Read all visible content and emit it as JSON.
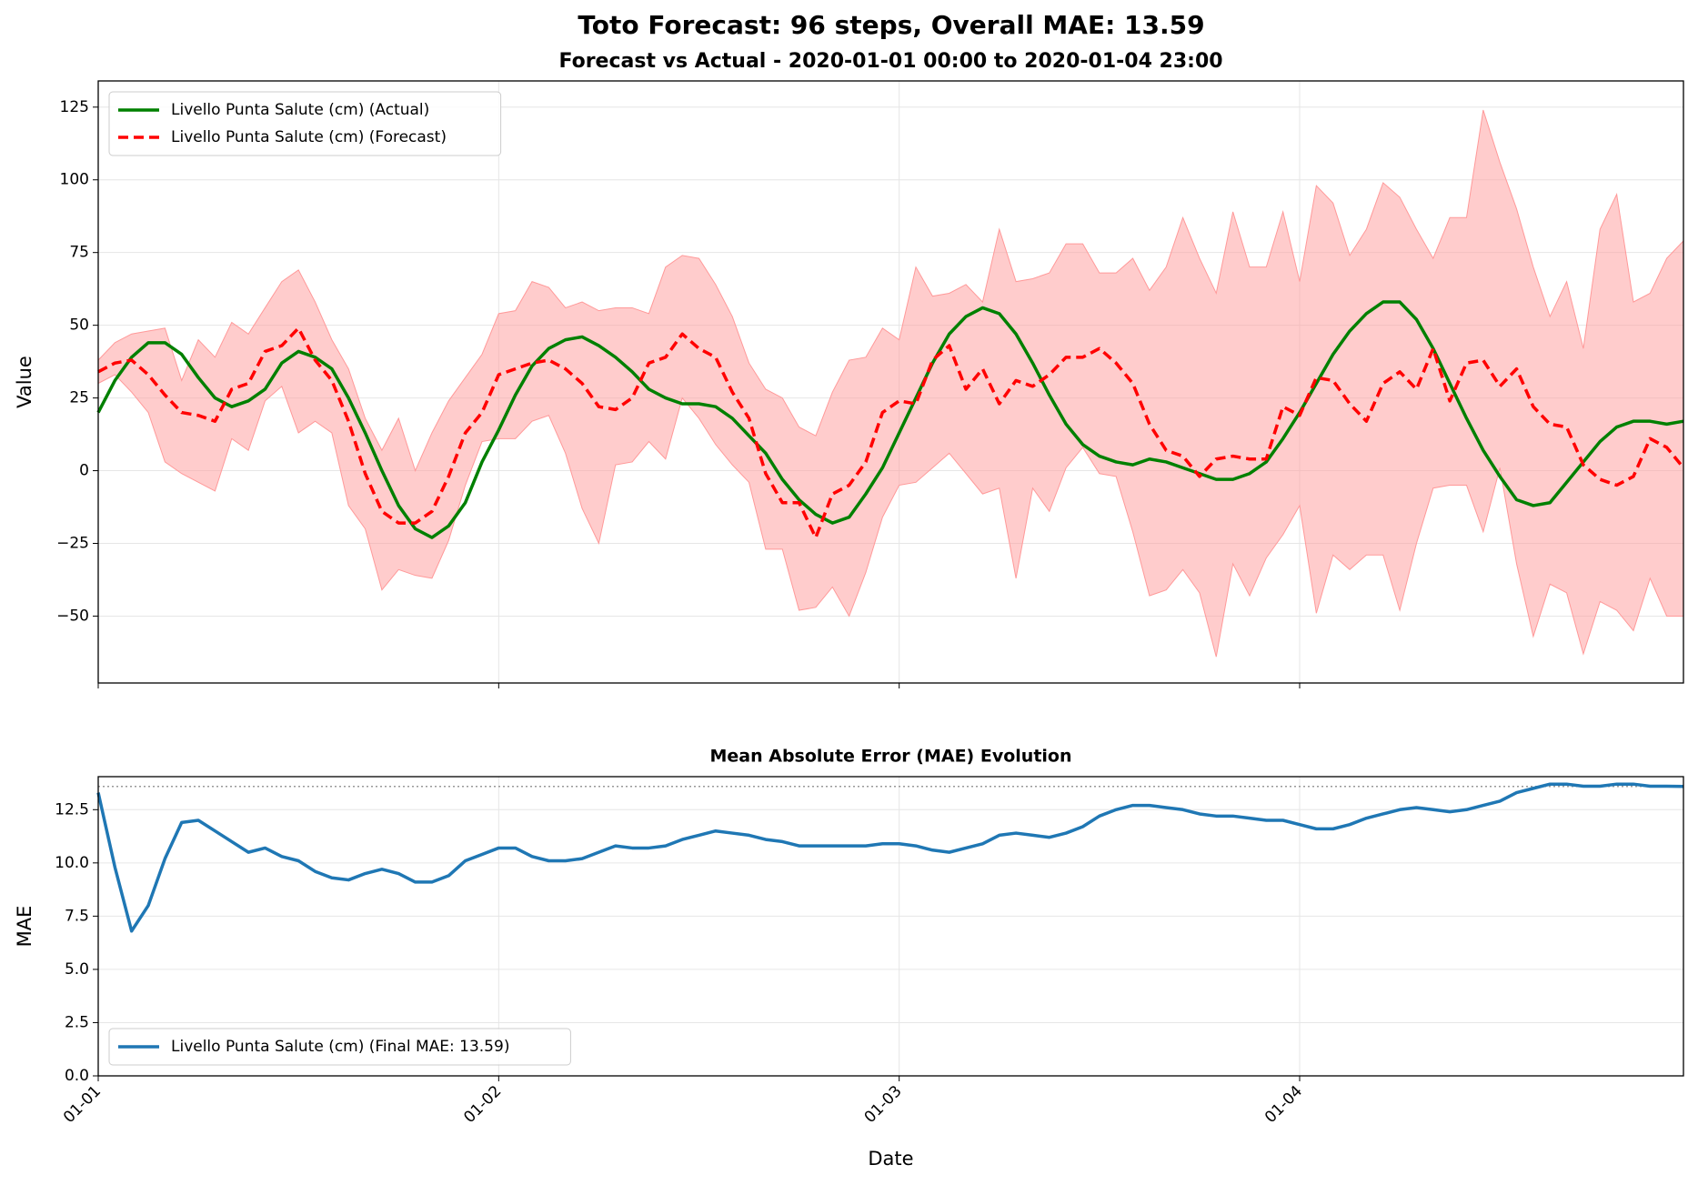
{
  "title": "Toto Forecast: 96 steps, Overall MAE: 13.59",
  "chart_data": [
    {
      "type": "line",
      "title": "Forecast vs Actual - 2020-01-01 00:00 to 2020-01-04 23:00",
      "ylabel": "Value",
      "x": [
        0,
        1,
        2,
        3,
        4,
        5,
        6,
        7,
        8,
        9,
        10,
        11,
        12,
        13,
        14,
        15,
        16,
        17,
        18,
        19,
        20,
        21,
        22,
        23,
        24,
        25,
        26,
        27,
        28,
        29,
        30,
        31,
        32,
        33,
        34,
        35,
        36,
        37,
        38,
        39,
        40,
        41,
        42,
        43,
        44,
        45,
        46,
        47,
        48,
        49,
        50,
        51,
        52,
        53,
        54,
        55,
        56,
        57,
        58,
        59,
        60,
        61,
        62,
        63,
        64,
        65,
        66,
        67,
        68,
        69,
        70,
        71,
        72,
        73,
        74,
        75,
        76,
        77,
        78,
        79,
        80,
        81,
        82,
        83,
        84,
        85,
        86,
        87,
        88,
        89,
        90,
        91,
        92,
        93,
        94,
        95
      ],
      "xlim": [
        0,
        95
      ],
      "xticks": [
        0,
        24,
        48,
        72
      ],
      "ylim": [
        -73,
        134
      ],
      "yticks": [
        {
          "value": -50,
          "label": "−50"
        },
        {
          "value": -25,
          "label": "−25"
        },
        0,
        25,
        50,
        75,
        100,
        125
      ],
      "grid": true,
      "legend": "upper left",
      "band": {
        "color": "#ff9999",
        "upper": [
          38,
          44,
          47,
          48,
          49,
          31,
          45,
          39,
          51,
          47,
          56,
          65,
          69,
          58,
          45,
          35,
          18,
          7,
          18,
          0,
          13,
          24,
          32,
          40,
          54,
          55,
          65,
          63,
          56,
          58,
          55,
          56,
          56,
          54,
          70,
          74,
          73,
          64,
          53,
          37,
          28,
          25,
          15,
          12,
          27,
          38,
          39,
          49,
          45,
          70,
          60,
          61,
          64,
          58,
          83,
          65,
          66,
          68,
          78,
          78,
          68,
          68,
          73,
          62,
          70,
          87,
          73,
          61,
          89,
          70,
          70,
          89,
          65,
          98,
          92,
          74,
          83,
          99,
          94,
          83,
          73,
          87,
          87,
          124,
          106,
          90,
          70,
          53,
          65,
          42,
          83,
          95,
          58,
          61,
          73,
          79
        ],
        "lower": [
          30,
          33,
          27,
          20,
          3,
          -1,
          -4,
          -7,
          11,
          7,
          24,
          29,
          13,
          17,
          13,
          -12,
          -20,
          -41,
          -34,
          -36,
          -37,
          -24,
          -5,
          10,
          11,
          11,
          17,
          19,
          6,
          -13,
          -25,
          2,
          3,
          10,
          4,
          25,
          18,
          9,
          2,
          -4,
          -27,
          -27,
          -48,
          -47,
          -40,
          -50,
          -35,
          -16,
          -5,
          -4,
          1,
          6,
          -1,
          -8,
          -6,
          -37,
          -6,
          -14,
          1,
          8,
          -1,
          -2,
          -21,
          -43,
          -41,
          -34,
          -42,
          -64,
          -32,
          -43,
          -30,
          -22,
          -12,
          -49,
          -29,
          -34,
          -29,
          -29,
          -48,
          -25,
          -6,
          -5,
          -5,
          -21,
          1,
          -32,
          -57,
          -39,
          -42,
          -63,
          -45,
          -48,
          -55,
          -37,
          -50,
          -50
        ]
      },
      "series": [
        {
          "name": "Livello Punta Salute (cm) (Actual)",
          "color": "#008000",
          "dash": false,
          "values": [
            20,
            31,
            39,
            44,
            44,
            40,
            32,
            25,
            22,
            24,
            28,
            37,
            41,
            39,
            35,
            25,
            13,
            0,
            -12,
            -20,
            -23,
            -19,
            -11,
            3,
            14,
            26,
            36,
            42,
            45,
            46,
            43,
            39,
            34,
            28,
            25,
            23,
            23,
            22,
            18,
            12,
            6,
            -3,
            -10,
            -15,
            -18,
            -16,
            -8,
            1,
            13,
            25,
            37,
            47,
            53,
            56,
            54,
            47,
            37,
            26,
            16,
            9,
            5,
            3,
            2,
            4,
            3,
            1,
            -1,
            -3,
            -3,
            -1,
            3,
            11,
            20,
            30,
            40,
            48,
            54,
            58,
            58,
            52,
            42,
            30,
            18,
            7,
            -2,
            -10,
            -12,
            -11,
            -4,
            3,
            10,
            15,
            17,
            17,
            16,
            17
          ]
        },
        {
          "name": "Livello Punta Salute (cm) (Forecast)",
          "color": "#ff0000",
          "dash": true,
          "values": [
            34,
            37,
            38,
            33,
            26,
            20,
            19,
            17,
            28,
            30,
            41,
            43,
            49,
            38,
            31,
            17,
            -1,
            -14,
            -18,
            -18,
            -14,
            -2,
            13,
            20,
            33,
            35,
            37,
            38,
            35,
            30,
            22,
            21,
            25,
            37,
            39,
            47,
            42,
            39,
            27,
            18,
            -1,
            -11,
            -11,
            -23,
            -8,
            -5,
            3,
            20,
            24,
            23,
            38,
            43,
            28,
            35,
            23,
            31,
            29,
            33,
            39,
            39,
            42,
            37,
            30,
            16,
            7,
            5,
            -2,
            4,
            5,
            4,
            4,
            22,
            19,
            32,
            31,
            23,
            17,
            30,
            34,
            28,
            42,
            24,
            37,
            38,
            29,
            35,
            22,
            16,
            15,
            2,
            -3,
            -5,
            -2,
            11,
            8,
            1
          ]
        }
      ]
    },
    {
      "type": "line",
      "title": "Mean Absolute Error (MAE) Evolution",
      "ylabel": "MAE",
      "xlabel": "Date",
      "x": [
        0,
        1,
        2,
        3,
        4,
        5,
        6,
        7,
        8,
        9,
        10,
        11,
        12,
        13,
        14,
        15,
        16,
        17,
        18,
        19,
        20,
        21,
        22,
        23,
        24,
        25,
        26,
        27,
        28,
        29,
        30,
        31,
        32,
        33,
        34,
        35,
        36,
        37,
        38,
        39,
        40,
        41,
        42,
        43,
        44,
        45,
        46,
        47,
        48,
        49,
        50,
        51,
        52,
        53,
        54,
        55,
        56,
        57,
        58,
        59,
        60,
        61,
        62,
        63,
        64,
        65,
        66,
        67,
        68,
        69,
        70,
        71,
        72,
        73,
        74,
        75,
        76,
        77,
        78,
        79,
        80,
        81,
        82,
        83,
        84,
        85,
        86,
        87,
        88,
        89,
        90,
        91,
        92,
        93,
        94,
        95
      ],
      "xlim": [
        0,
        95
      ],
      "xticks": [
        {
          "value": 0,
          "label": "01-01"
        },
        {
          "value": 24,
          "label": "01-02"
        },
        {
          "value": 48,
          "label": "01-03"
        },
        {
          "value": 72,
          "label": "01-04"
        }
      ],
      "ylim": [
        0,
        14.05
      ],
      "yticks": [
        {
          "value": 0,
          "label": "0.0"
        },
        2.5,
        {
          "value": 5,
          "label": "5.0"
        },
        7.5,
        {
          "value": 10,
          "label": "10.0"
        },
        12.5
      ],
      "grid": true,
      "legend": "lower left",
      "hline": 13.59,
      "hline_color": "#999999",
      "series": [
        {
          "name": "Livello Punta Salute (cm) (Final MAE: 13.59)",
          "color": "#1f77b4",
          "dash": false,
          "values": [
            13.3,
            9.8,
            6.8,
            8.0,
            10.2,
            11.9,
            12.0,
            11.5,
            11.0,
            10.5,
            10.7,
            10.3,
            10.1,
            9.6,
            9.3,
            9.2,
            9.5,
            9.7,
            9.5,
            9.1,
            9.1,
            9.4,
            10.1,
            10.4,
            10.7,
            10.7,
            10.3,
            10.1,
            10.1,
            10.2,
            10.5,
            10.8,
            10.7,
            10.7,
            10.8,
            11.1,
            11.3,
            11.5,
            11.4,
            11.3,
            11.1,
            11.0,
            10.8,
            10.8,
            10.8,
            10.8,
            10.8,
            10.9,
            10.9,
            10.8,
            10.6,
            10.5,
            10.7,
            10.9,
            11.3,
            11.4,
            11.3,
            11.2,
            11.4,
            11.7,
            12.2,
            12.5,
            12.7,
            12.7,
            12.6,
            12.5,
            12.3,
            12.2,
            12.2,
            12.1,
            12.0,
            12.0,
            11.8,
            11.6,
            11.6,
            11.8,
            12.1,
            12.3,
            12.5,
            12.6,
            12.5,
            12.4,
            12.5,
            12.7,
            12.9,
            13.3,
            13.5,
            13.7,
            13.7,
            13.6,
            13.6,
            13.7,
            13.7,
            13.6,
            13.6,
            13.59
          ]
        }
      ]
    }
  ]
}
